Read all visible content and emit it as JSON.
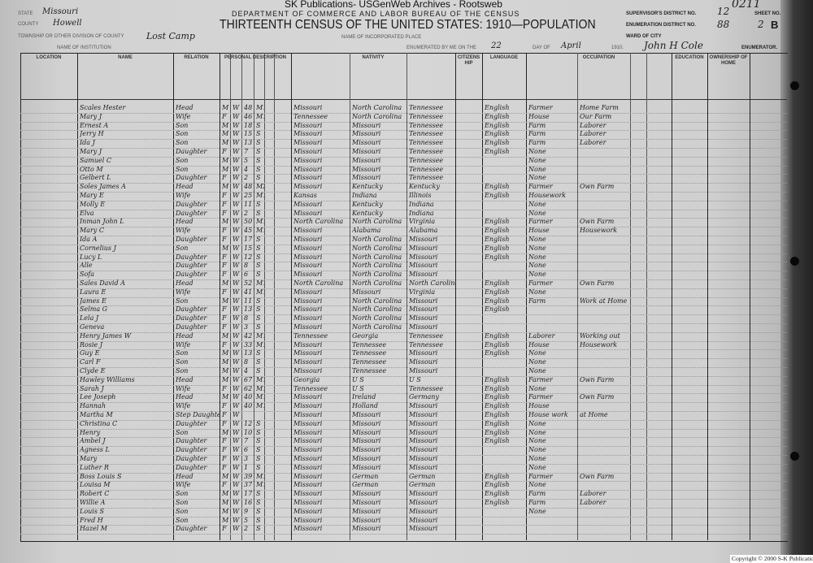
{
  "watermark": "SK Publications- USGenWeb Archives - Rootsweb",
  "header": {
    "department": "DEPARTMENT OF COMMERCE AND LABOR BUREAU OF THE CENSUS",
    "title": "THIRTEENTH CENSUS OF THE UNITED STATES: 1910—POPULATION",
    "state_label": "State",
    "state_value": "Missouri",
    "county_label": "County",
    "county_value": "Howell",
    "township_label": "Township or other division of county",
    "township_value": "Lost Camp",
    "institution_label": "Name of institution",
    "place_label": "Name of incorporated place",
    "ward_label": "Ward of city",
    "enumerated_label": "Enumerated by me on the",
    "enumerated_day": "22",
    "day_of_label": "day of",
    "month_value": "April",
    "year_label": "1910.",
    "enumerator_value": "John H Cole",
    "enumerator_label": "Enumerator.",
    "supervisor_label": "Supervisor's District No.",
    "supervisor_value": "12",
    "enumeration_label": "Enumeration District No.",
    "enumeration_value": "88",
    "sheet_label": "Sheet No.",
    "sheet_value": "2",
    "sheet_letter": "B",
    "page_stamp": "0211"
  },
  "columns": {
    "location": "Location",
    "name": "Name",
    "relation": "Relation",
    "personal": "Personal Description",
    "nativity": "Nativity",
    "citizenship": "Citizenship",
    "language": "Language",
    "occupation": "Occupation",
    "education": "Education",
    "ownership": "Ownership of Home"
  },
  "rows": [
    [
      "Scales Hester",
      "Head",
      "M",
      "W",
      "48",
      "M1",
      "Missouri",
      "North Carolina",
      "Tennessee",
      "English",
      "Farmer",
      "Home Farm"
    ],
    [
      "Mary J",
      "Wife",
      "F",
      "W",
      "46",
      "M1",
      "Tennessee",
      "North Carolina",
      "Tennessee",
      "English",
      "House",
      "Our Farm"
    ],
    [
      "Ernest A",
      "Son",
      "M",
      "W",
      "18",
      "S",
      "Missouri",
      "Missouri",
      "Tennessee",
      "English",
      "Farm",
      "Laborer"
    ],
    [
      "Jerry H",
      "Son",
      "M",
      "W",
      "15",
      "S",
      "Missouri",
      "Missouri",
      "Tennessee",
      "English",
      "Farm",
      "Laborer"
    ],
    [
      "Ida J",
      "Son",
      "M",
      "W",
      "13",
      "S",
      "Missouri",
      "Missouri",
      "Tennessee",
      "English",
      "Farm",
      "Laborer"
    ],
    [
      "Mary J",
      "Daughter",
      "F",
      "W",
      "7",
      "S",
      "Missouri",
      "Missouri",
      "Tennessee",
      "English",
      "None",
      ""
    ],
    [
      "Samuel C",
      "Son",
      "M",
      "W",
      "5",
      "S",
      "Missouri",
      "Missouri",
      "Tennessee",
      "",
      "None",
      ""
    ],
    [
      "Otto M",
      "Son",
      "M",
      "W",
      "4",
      "S",
      "Missouri",
      "Missouri",
      "Tennessee",
      "",
      "None",
      ""
    ],
    [
      "Gelbert L",
      "Daughter",
      "F",
      "W",
      "2",
      "S",
      "Missouri",
      "Missouri",
      "Tennessee",
      "",
      "None",
      ""
    ],
    [
      "Soles James A",
      "Head",
      "M",
      "W",
      "48",
      "M2",
      "Missouri",
      "Kentucky",
      "Kentucky",
      "English",
      "Farmer",
      "Own Farm"
    ],
    [
      "Mary E",
      "Wife",
      "F",
      "W",
      "25",
      "M1",
      "Kansas",
      "Indiana",
      "Illinois",
      "English",
      "Housework",
      ""
    ],
    [
      "Molly E",
      "Daughter",
      "F",
      "W",
      "11",
      "S",
      "Missouri",
      "Kentucky",
      "Indiana",
      "",
      "None",
      ""
    ],
    [
      "Elva",
      "Daughter",
      "F",
      "W",
      "2",
      "S",
      "Missouri",
      "Kentucky",
      "Indiana",
      "",
      "None",
      ""
    ],
    [
      "Inman John L",
      "Head",
      "M",
      "W",
      "50",
      "M1",
      "North Carolina",
      "North Carolina",
      "Virginia",
      "English",
      "Farmer",
      "Own Farm"
    ],
    [
      "Mary C",
      "Wife",
      "F",
      "W",
      "45",
      "M1",
      "Missouri",
      "Alabama",
      "Alabama",
      "English",
      "House",
      "Housework"
    ],
    [
      "Ida A",
      "Daughter",
      "F",
      "W",
      "17",
      "S",
      "Missouri",
      "North Carolina",
      "Missouri",
      "English",
      "None",
      ""
    ],
    [
      "Cornelius J",
      "Son",
      "M",
      "W",
      "15",
      "S",
      "Missouri",
      "North Carolina",
      "Missouri",
      "English",
      "None",
      ""
    ],
    [
      "Lucy L",
      "Daughter",
      "F",
      "W",
      "12",
      "S",
      "Missouri",
      "North Carolina",
      "Missouri",
      "English",
      "None",
      ""
    ],
    [
      "Alle",
      "Daughter",
      "F",
      "W",
      "8",
      "S",
      "Missouri",
      "North Carolina",
      "Missouri",
      "",
      "None",
      ""
    ],
    [
      "Sofa",
      "Daughter",
      "F",
      "W",
      "6",
      "S",
      "Missouri",
      "North Carolina",
      "Missouri",
      "",
      "None",
      ""
    ],
    [
      "Sales David A",
      "Head",
      "M",
      "W",
      "52",
      "M1",
      "North Carolina",
      "North Carolina",
      "North Carolina",
      "English",
      "Farmer",
      "Own Farm"
    ],
    [
      "Laura E",
      "Wife",
      "F",
      "W",
      "41",
      "M1",
      "Missouri",
      "Missouri",
      "Virginia",
      "English",
      "None",
      ""
    ],
    [
      "James E",
      "Son",
      "M",
      "W",
      "11",
      "S",
      "Missouri",
      "North Carolina",
      "Missouri",
      "English",
      "Farm",
      "Work at Home"
    ],
    [
      "Selma G",
      "Daughter",
      "F",
      "W",
      "13",
      "S",
      "Missouri",
      "North Carolina",
      "Missouri",
      "English",
      "",
      ""
    ],
    [
      "Lela J",
      "Daughter",
      "F",
      "W",
      "8",
      "S",
      "Missouri",
      "North Carolina",
      "Missouri",
      "",
      "",
      ""
    ],
    [
      "Geneva",
      "Daughter",
      "F",
      "W",
      "3",
      "S",
      "Missouri",
      "North Carolina",
      "Missouri",
      "",
      "",
      ""
    ],
    [
      "Henry James W",
      "Head",
      "M",
      "W",
      "42",
      "M1",
      "Tennessee",
      "Georgia",
      "Tennessee",
      "English",
      "Laborer",
      "Working out"
    ],
    [
      "Rosie J",
      "Wife",
      "F",
      "W",
      "33",
      "M1",
      "Missouri",
      "Tennessee",
      "Tennessee",
      "English",
      "House",
      "Housework"
    ],
    [
      "Guy E",
      "Son",
      "M",
      "W",
      "13",
      "S",
      "Missouri",
      "Tennessee",
      "Missouri",
      "English",
      "None",
      ""
    ],
    [
      "Carl F",
      "Son",
      "M",
      "W",
      "8",
      "S",
      "Missouri",
      "Tennessee",
      "Missouri",
      "",
      "None",
      ""
    ],
    [
      "Clyde E",
      "Son",
      "M",
      "W",
      "4",
      "S",
      "Missouri",
      "Tennessee",
      "Missouri",
      "",
      "None",
      ""
    ],
    [
      "Hawley Williams",
      "Head",
      "M",
      "W",
      "67",
      "M1",
      "Georgia",
      "U S",
      "U S",
      "English",
      "Farmer",
      "Own Farm"
    ],
    [
      "Sarah J",
      "Wife",
      "F",
      "W",
      "62",
      "M1",
      "Tennessee",
      "U S",
      "Tennessee",
      "English",
      "None",
      ""
    ],
    [
      "Lee Joseph",
      "Head",
      "M",
      "W",
      "40",
      "M1",
      "Missouri",
      "Ireland",
      "Germany",
      "English",
      "Farmer",
      "Own Farm"
    ],
    [
      "Hannah",
      "Wife",
      "F",
      "W",
      "40",
      "M1",
      "Missouri",
      "Holland",
      "Missouri",
      "English",
      "House",
      ""
    ],
    [
      "Martha M",
      "Step Daughter",
      "F",
      "W",
      "",
      "",
      "Missouri",
      "Missouri",
      "Missouri",
      "English",
      "House work",
      "at Home"
    ],
    [
      "Christina C",
      "Daughter",
      "F",
      "W",
      "12",
      "S",
      "Missouri",
      "Missouri",
      "Missouri",
      "English",
      "None",
      ""
    ],
    [
      "Henry",
      "Son",
      "M",
      "W",
      "10",
      "S",
      "Missouri",
      "Missouri",
      "Missouri",
      "English",
      "None",
      ""
    ],
    [
      "Ambel J",
      "Daughter",
      "F",
      "W",
      "7",
      "S",
      "Missouri",
      "Missouri",
      "Missouri",
      "English",
      "None",
      ""
    ],
    [
      "Agness L",
      "Daughter",
      "F",
      "W",
      "6",
      "S",
      "Missouri",
      "Missouri",
      "Missouri",
      "",
      "None",
      ""
    ],
    [
      "Mary",
      "Daughter",
      "F",
      "W",
      "3",
      "S",
      "Missouri",
      "Missouri",
      "Missouri",
      "",
      "None",
      ""
    ],
    [
      "Luther R",
      "Daughter",
      "F",
      "W",
      "1",
      "S",
      "Missouri",
      "Missouri",
      "Missouri",
      "",
      "None",
      ""
    ],
    [
      "Boss Louis S",
      "Head",
      "M",
      "W",
      "39",
      "M1",
      "Missouri",
      "German",
      "German",
      "English",
      "Farmer",
      "Own Farm"
    ],
    [
      "Louisa M",
      "Wife",
      "F",
      "W",
      "37",
      "M1",
      "Missouri",
      "German",
      "German",
      "English",
      "None",
      ""
    ],
    [
      "Robert C",
      "Son",
      "M",
      "W",
      "17",
      "S",
      "Missouri",
      "Missouri",
      "Missouri",
      "English",
      "Farm",
      "Laborer"
    ],
    [
      "Willie A",
      "Son",
      "M",
      "W",
      "16",
      "S",
      "Missouri",
      "Missouri",
      "Missouri",
      "English",
      "Farm",
      "Laborer"
    ],
    [
      "Louis S",
      "Son",
      "M",
      "W",
      "9",
      "S",
      "Missouri",
      "Missouri",
      "Missouri",
      "",
      "None",
      ""
    ],
    [
      "Fred H",
      "Son",
      "M",
      "W",
      "5",
      "S",
      "Missouri",
      "Missouri",
      "Missouri",
      "",
      "",
      ""
    ],
    [
      "Hazel M",
      "Daughter",
      "F",
      "W",
      "2",
      "S",
      "Missouri",
      "Missouri",
      "Missouri",
      "",
      "",
      ""
    ]
  ],
  "copyright": "Copyright © 2000 S-K Publications"
}
